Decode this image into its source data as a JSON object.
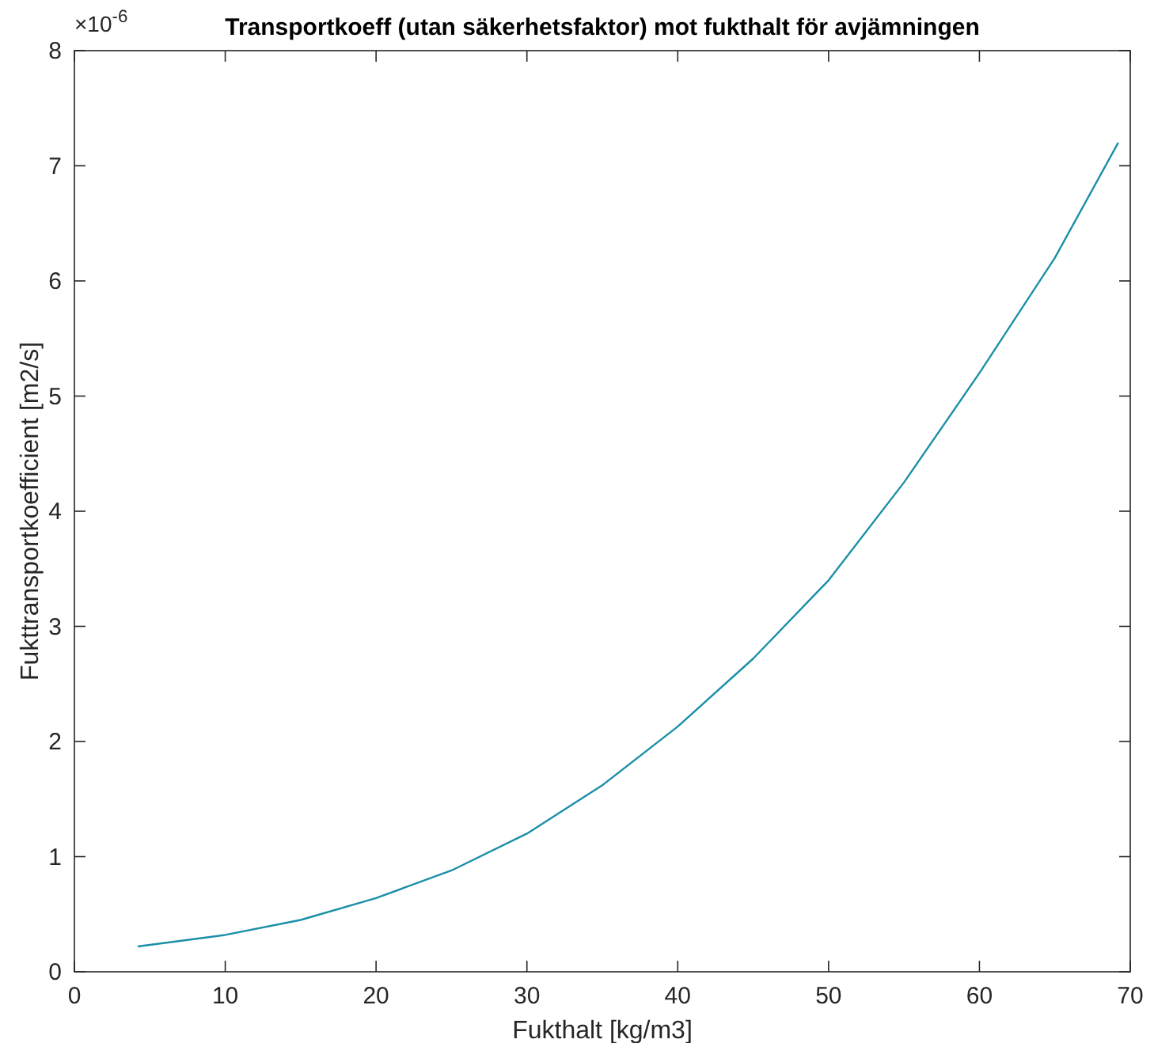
{
  "chart_data": {
    "type": "line",
    "title": "Transportkoeff (utan säkerhetsfaktor) mot fukthalt för avjämningen",
    "xlabel": "Fukthalt [kg/m3]",
    "ylabel": "Fukttransportkoefficient [m2/s]",
    "annotations": [
      "×10$^{-6}$"
    ],
    "x": [
      4.2,
      10,
      15,
      20,
      25,
      30,
      35,
      40,
      45,
      50,
      55,
      60,
      65,
      69.2
    ],
    "series": [
      {
        "color": "#1a8fa8",
        "values": [
          0.22,
          0.32,
          0.45,
          0.64,
          0.88,
          1.2,
          1.62,
          2.13,
          2.72,
          3.4,
          4.25,
          5.2,
          6.2,
          7.2
        ]
      }
    ],
    "xlim": [
      0,
      70
    ],
    "xticks": [
      0,
      10,
      20,
      30,
      40,
      50,
      60,
      70
    ],
    "ylim": [
      0,
      8
    ],
    "yticks": [
      0,
      1,
      2,
      3,
      4,
      5,
      6,
      7,
      8
    ],
    "grid": false,
    "marker": "none",
    "line_style": "solid"
  }
}
